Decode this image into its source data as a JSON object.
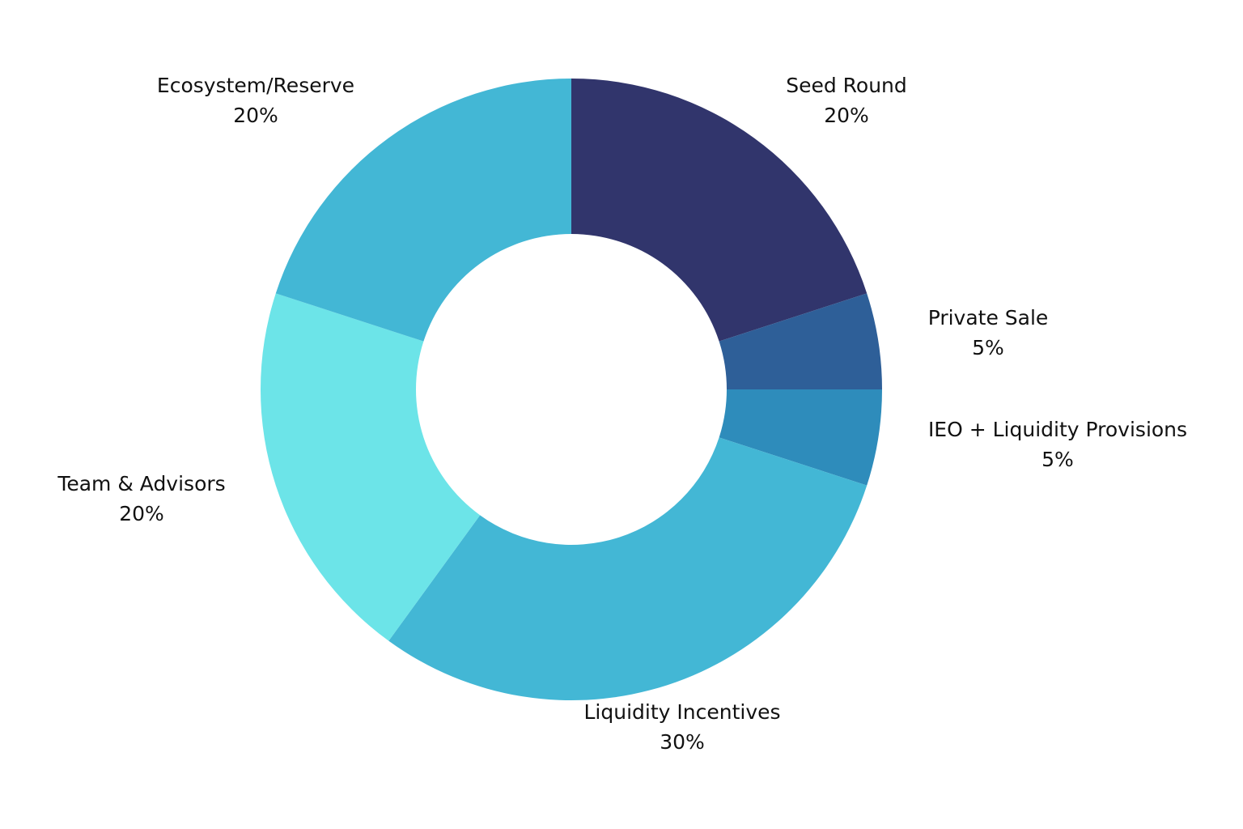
{
  "chart_data": {
    "type": "pie",
    "variant": "donut",
    "title": "",
    "legend": "none",
    "slices": [
      {
        "label": "Seed Round",
        "value": 20,
        "value_label": "20%",
        "color": "#31356c"
      },
      {
        "label": "Private Sale",
        "value": 5,
        "value_label": "5%",
        "color": "#2e5f98"
      },
      {
        "label": "IEO + Liquidity Provisions",
        "value": 5,
        "value_label": "5%",
        "color": "#2e8cbb"
      },
      {
        "label": "Liquidity Incentives",
        "value": 30,
        "value_label": "30%",
        "color": "#43b7d5"
      },
      {
        "label": "Team & Advisors",
        "value": 20,
        "value_label": "20%",
        "color": "#6ce4e8"
      },
      {
        "label": "Ecosystem/Reserve",
        "value": 20,
        "value_label": "20%",
        "color": "#43b7d5"
      }
    ]
  }
}
